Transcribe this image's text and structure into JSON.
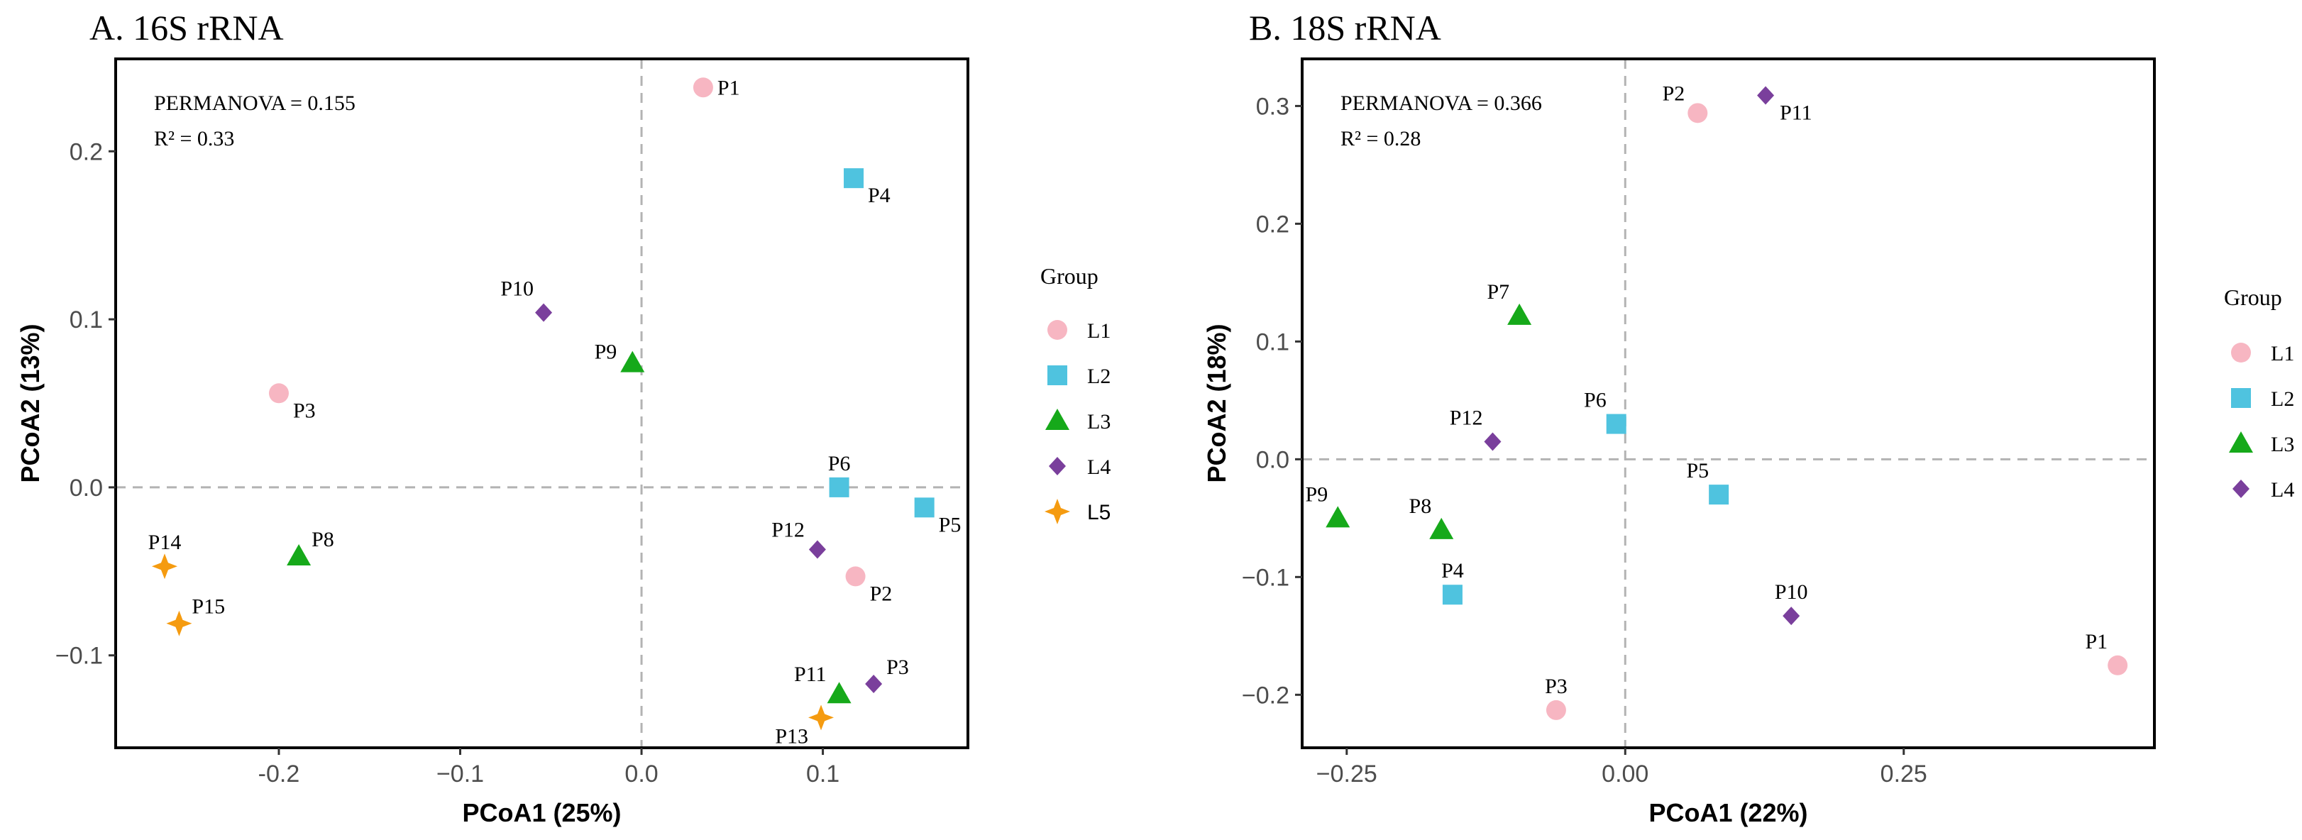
{
  "colors": {
    "L1": "#f7b6c2",
    "L2": "#4fc3df",
    "L3": "#16a91a",
    "L4": "#7a3f9c",
    "L5": "#f59b10"
  },
  "chart_data": [
    {
      "type": "scatter",
      "title": "A. 16S rRNA",
      "xlabel": "PCoA1 (25%)",
      "ylabel": "PCoA2 (13%)",
      "xlim": [
        -0.29,
        0.18
      ],
      "ylim": [
        -0.155,
        0.255
      ],
      "xticks": [
        -0.2,
        -0.1,
        0.0,
        0.1
      ],
      "xtick_labels": [
        "-0.2",
        "−0.1",
        "0.0",
        "0.1"
      ],
      "yticks": [
        -0.1,
        0.0,
        0.1,
        0.2
      ],
      "ytick_labels": [
        "−0.1",
        "0.0",
        "0.1",
        "0.2"
      ],
      "permanova": "PERMANOVA = 0.155",
      "r2": "R² = 0.33",
      "legend_title": "Group",
      "legend": [
        {
          "group": "L1",
          "label": "L1",
          "shape": "circle"
        },
        {
          "group": "L2",
          "label": "L2",
          "shape": "square"
        },
        {
          "group": "L3",
          "label": "L3",
          "shape": "triangle"
        },
        {
          "group": "L4",
          "label": "L4",
          "shape": "diamond"
        },
        {
          "group": "L5",
          "label": "L5",
          "shape": "star"
        }
      ],
      "points": [
        {
          "label": "P1",
          "group": "L1",
          "x": 0.034,
          "y": 0.238,
          "anchor": "right"
        },
        {
          "label": "P3",
          "group": "L1",
          "x": -0.2,
          "y": 0.056,
          "anchor": "right-below"
        },
        {
          "label": "P2",
          "group": "L1",
          "x": 0.118,
          "y": -0.053,
          "anchor": "right-below"
        },
        {
          "label": "P4",
          "group": "L2",
          "x": 0.117,
          "y": 0.184,
          "anchor": "right-below"
        },
        {
          "label": "P6",
          "group": "L2",
          "x": 0.109,
          "y": 0.0,
          "anchor": "above"
        },
        {
          "label": "P5",
          "group": "L2",
          "x": 0.156,
          "y": -0.012,
          "anchor": "right-below"
        },
        {
          "label": "P9",
          "group": "L3",
          "x": -0.005,
          "y": 0.074,
          "anchor": "left"
        },
        {
          "label": "P8",
          "group": "L3",
          "x": -0.189,
          "y": -0.041,
          "anchor": "right-above"
        },
        {
          "label": "P11",
          "group": "L3",
          "x": 0.109,
          "y": -0.123,
          "anchor": "left-above"
        },
        {
          "label": "P10",
          "group": "L4",
          "x": -0.054,
          "y": 0.104,
          "anchor": "above-left"
        },
        {
          "label": "P12",
          "group": "L4",
          "x": 0.097,
          "y": -0.037,
          "anchor": "left-above"
        },
        {
          "label": "P3",
          "group": "L4",
          "x": 0.128,
          "y": -0.117,
          "anchor": "right-above"
        },
        {
          "label": "P14",
          "group": "L5",
          "x": -0.263,
          "y": -0.047,
          "anchor": "above"
        },
        {
          "label": "P15",
          "group": "L5",
          "x": -0.255,
          "y": -0.081,
          "anchor": "right-above"
        },
        {
          "label": "P13",
          "group": "L5",
          "x": 0.099,
          "y": -0.137,
          "anchor": "left-below"
        }
      ]
    },
    {
      "type": "scatter",
      "title": "B. 18S rRNA",
      "xlabel": "PCoA1 (22%)",
      "ylabel": "PCoA2 (18%)",
      "xlim": [
        -0.29,
        0.475
      ],
      "ylim": [
        -0.245,
        0.34
      ],
      "xticks": [
        -0.25,
        0.0,
        0.25
      ],
      "xtick_labels": [
        "−0.25",
        "0.00",
        "0.25"
      ],
      "yticks": [
        -0.2,
        -0.1,
        0.0,
        0.1,
        0.2,
        0.3
      ],
      "ytick_labels": [
        "−0.2",
        "−0.1",
        "0.0",
        "0.1",
        "0.2",
        "0.3"
      ],
      "permanova": "PERMANOVA = 0.366",
      "r2": "R² = 0.28",
      "legend_title": "Group",
      "legend": [
        {
          "group": "L1",
          "label": "L1",
          "shape": "circle"
        },
        {
          "group": "L2",
          "label": "L2",
          "shape": "square"
        },
        {
          "group": "L3",
          "label": "L3",
          "shape": "triangle"
        },
        {
          "group": "L4",
          "label": "L4",
          "shape": "diamond"
        }
      ],
      "points": [
        {
          "label": "P2",
          "group": "L1",
          "x": 0.065,
          "y": 0.294,
          "anchor": "left-above"
        },
        {
          "label": "P3",
          "group": "L1",
          "x": -0.062,
          "y": -0.213,
          "anchor": "above"
        },
        {
          "label": "P1",
          "group": "L1",
          "x": 0.442,
          "y": -0.175,
          "anchor": "above-left"
        },
        {
          "label": "P6",
          "group": "L2",
          "x": -0.008,
          "y": 0.03,
          "anchor": "above-left"
        },
        {
          "label": "P5",
          "group": "L2",
          "x": 0.084,
          "y": -0.03,
          "anchor": "above-left"
        },
        {
          "label": "P4",
          "group": "L2",
          "x": -0.155,
          "y": -0.115,
          "anchor": "above"
        },
        {
          "label": "P7",
          "group": "L3",
          "x": -0.095,
          "y": 0.122,
          "anchor": "above-left"
        },
        {
          "label": "P9",
          "group": "L3",
          "x": -0.258,
          "y": -0.05,
          "anchor": "above-left"
        },
        {
          "label": "P8",
          "group": "L3",
          "x": -0.165,
          "y": -0.06,
          "anchor": "above-left"
        },
        {
          "label": "P11",
          "group": "L4",
          "x": 0.126,
          "y": 0.309,
          "anchor": "right-below"
        },
        {
          "label": "P12",
          "group": "L4",
          "x": -0.119,
          "y": 0.015,
          "anchor": "above-left"
        },
        {
          "label": "P10",
          "group": "L4",
          "x": 0.149,
          "y": -0.133,
          "anchor": "above"
        }
      ]
    }
  ]
}
